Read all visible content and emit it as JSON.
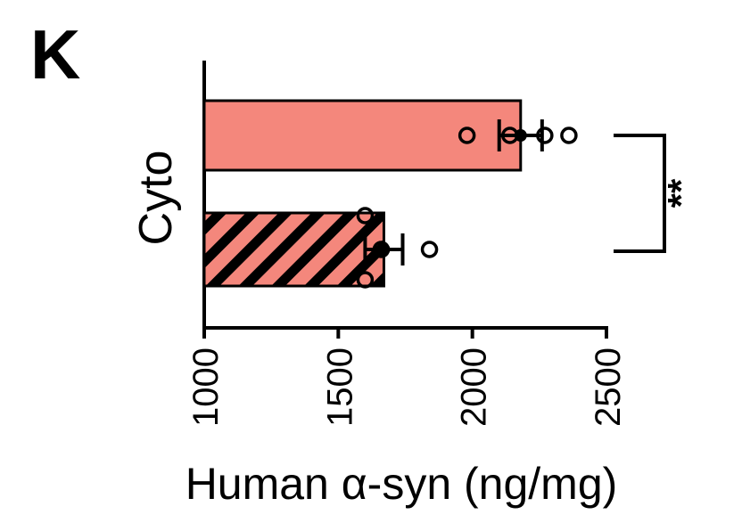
{
  "panel_label": "K",
  "chart_data": {
    "type": "bar",
    "orientation": "horizontal",
    "group_label": "Cyto",
    "xlabel": "Human α-syn (ng/mg)",
    "xlim": [
      1000,
      2500
    ],
    "xticks": [
      "1000",
      "1500",
      "2000",
      "2500"
    ],
    "tick_values": [
      1000,
      1500,
      2000,
      2500
    ],
    "bars": [
      {
        "value": 2180,
        "error": 80,
        "hatched": false,
        "points": [
          1980,
          2140,
          2270,
          2360
        ]
      },
      {
        "value": 1670,
        "error": 70,
        "hatched": true,
        "points": [
          1600,
          1660,
          1840,
          1600
        ]
      }
    ],
    "significance": "**",
    "colors": {
      "bar_fill": "#f4877c",
      "hatch": "#000000",
      "axis": "#000000"
    }
  }
}
